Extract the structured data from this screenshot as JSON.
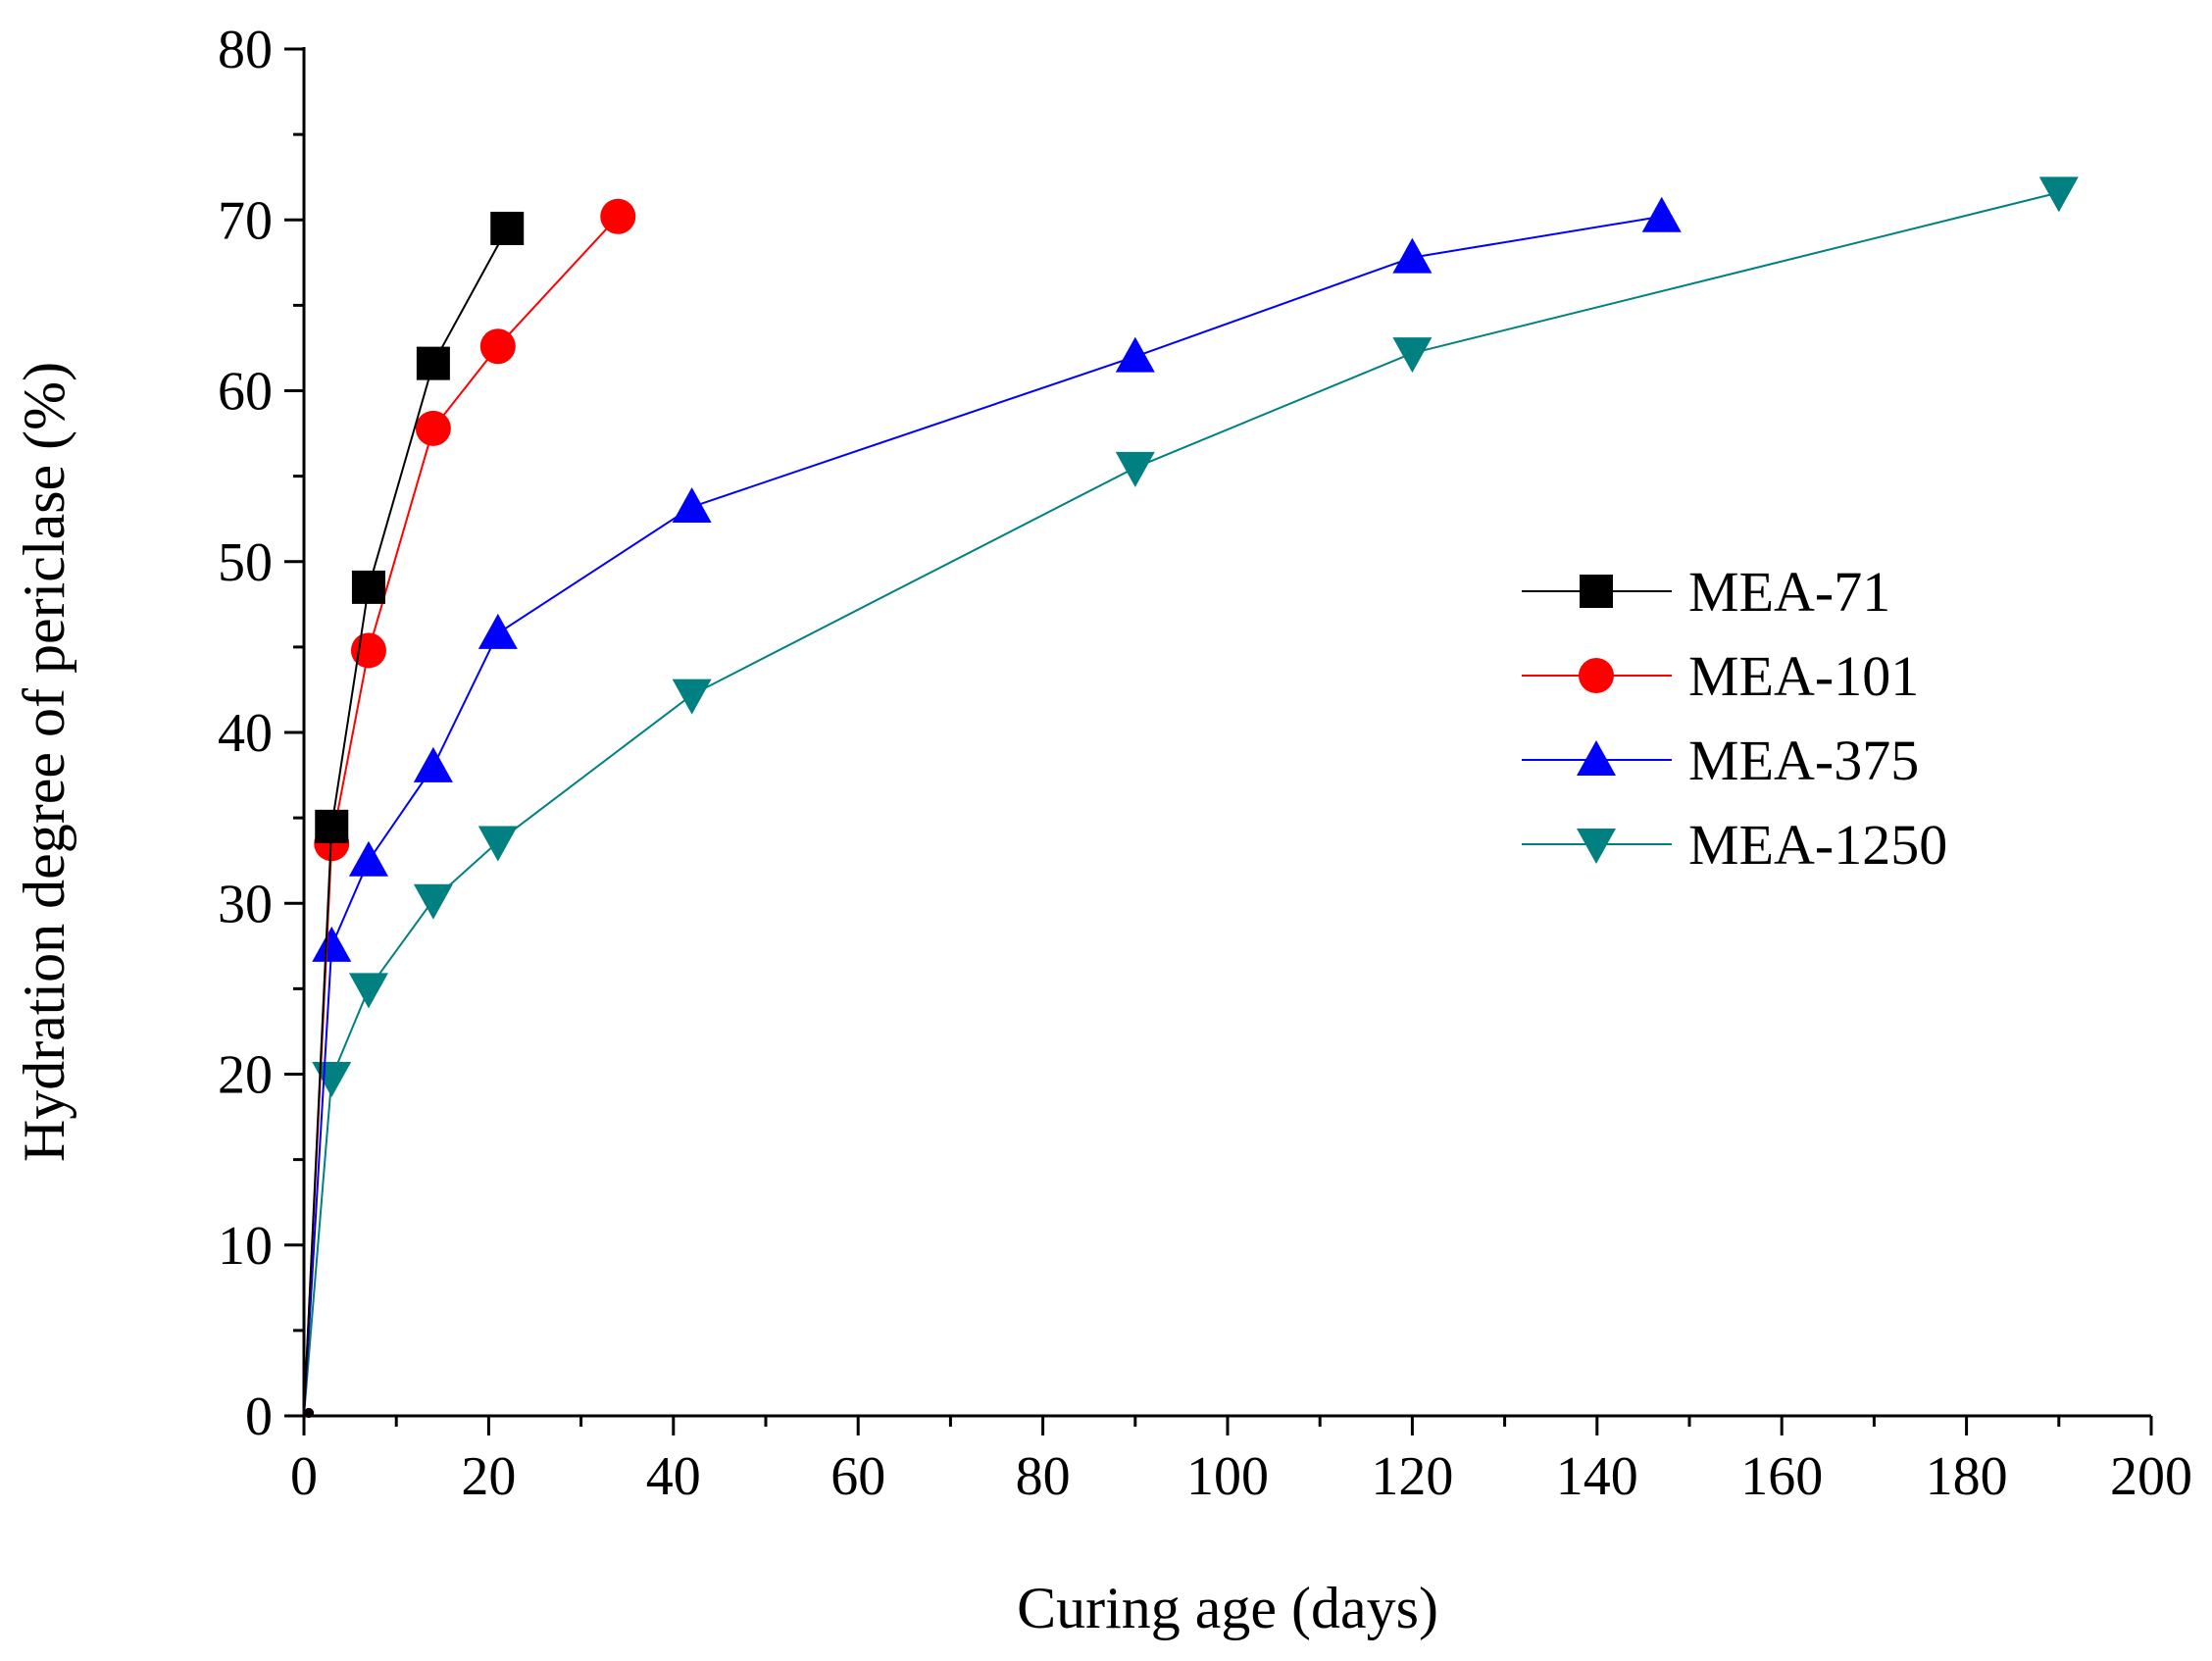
{
  "chart_data": {
    "type": "line",
    "title": "",
    "xlabel": "Curing age (days)",
    "ylabel": "Hydration degree of periclase (%)",
    "xlim": [
      0,
      200
    ],
    "ylim": [
      0,
      80
    ],
    "xticks": [
      0,
      20,
      40,
      60,
      80,
      100,
      120,
      140,
      160,
      180,
      200
    ],
    "yticks": [
      0,
      10,
      20,
      30,
      40,
      50,
      60,
      70,
      80
    ],
    "grid": false,
    "legend_position": "right-middle",
    "series": [
      {
        "name": "MEA-71",
        "color": "#000000",
        "marker": "square",
        "x": [
          0,
          3,
          7,
          14,
          22
        ],
        "y": [
          0,
          34.5,
          48.5,
          61.6,
          69.5
        ]
      },
      {
        "name": "MEA-101",
        "color": "#ff0000",
        "marker": "circle",
        "x": [
          0,
          3,
          7,
          14,
          21,
          34
        ],
        "y": [
          0,
          33.5,
          44.8,
          57.8,
          62.6,
          70.2
        ]
      },
      {
        "name": "MEA-375",
        "color": "#0000ff",
        "marker": "triangle-up",
        "x": [
          0,
          3,
          7,
          14,
          21,
          42,
          90,
          120,
          147
        ],
        "y": [
          0,
          27.5,
          32.5,
          38,
          45.8,
          53.2,
          62,
          67.8,
          70.2
        ]
      },
      {
        "name": "MEA-1250",
        "color": "#008080",
        "marker": "triangle-down",
        "x": [
          0,
          3,
          7,
          14,
          21,
          42,
          90,
          120,
          190
        ],
        "y": [
          0,
          19.8,
          25,
          30.2,
          33.6,
          42.2,
          55.5,
          62.2,
          71.6
        ]
      }
    ]
  }
}
